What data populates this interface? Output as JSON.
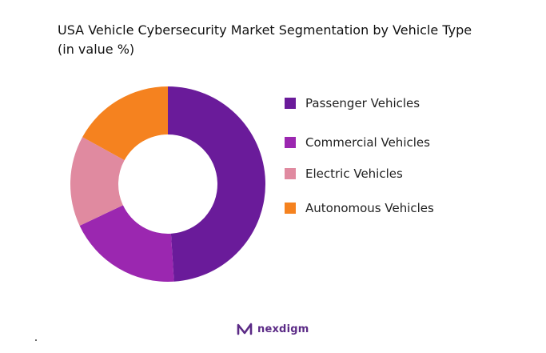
{
  "chart_data": {
    "type": "pie",
    "title": "USA Vehicle Cybersecurity Market Segmentation by Vehicle Type (in value %)",
    "categories": [
      "Passenger Vehicles",
      "Commercial Vehicles",
      "Electric Vehicles",
      "Autonomous Vehicles"
    ],
    "values": [
      49,
      19,
      15,
      17
    ],
    "colors": [
      "#6a1b9a",
      "#9b27b0",
      "#e08aa0",
      "#f5821f"
    ],
    "donut": true,
    "legend_position": "right"
  },
  "branding": {
    "logo_text": "nexdigm",
    "logo_color": "#5b2a86",
    "logo_icon": "nexdigm-logo-icon"
  }
}
